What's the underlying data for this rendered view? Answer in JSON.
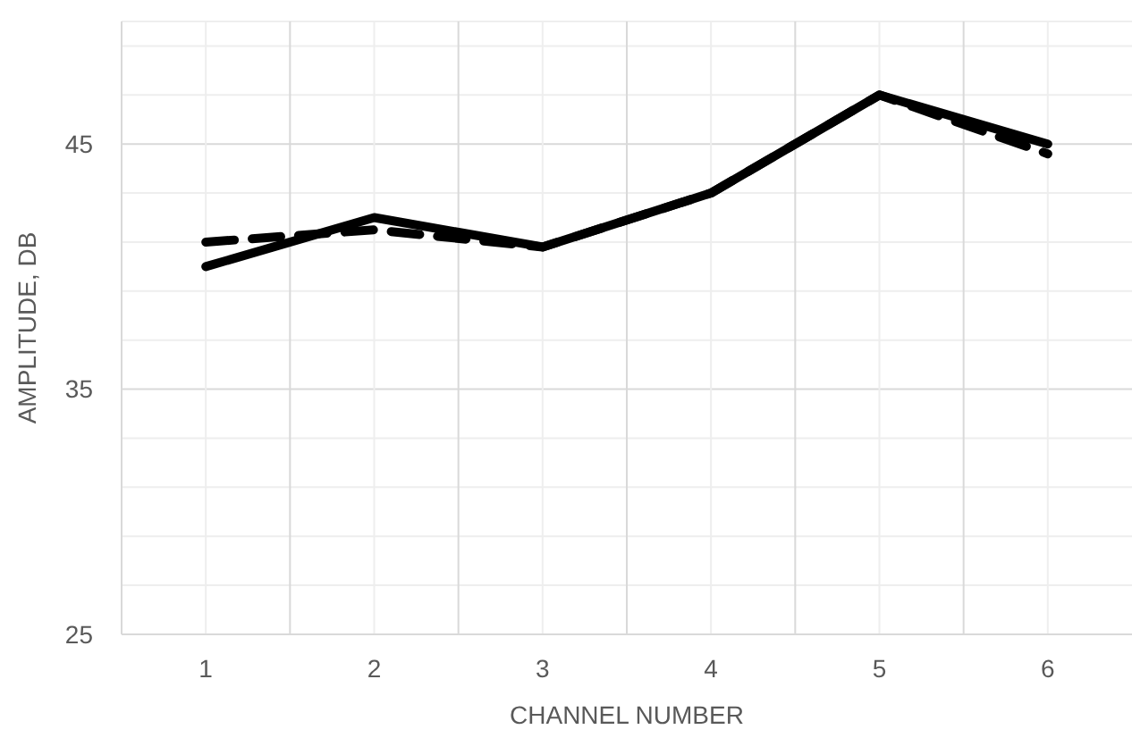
{
  "chart_data": {
    "type": "line",
    "xlabel": "CHANNEL NUMBER",
    "ylabel": "AMPLITUDE, DB",
    "categories": [
      "1",
      "2",
      "3",
      "4",
      "5",
      "6"
    ],
    "series": [
      {
        "color": "#000000",
        "values": [
          41,
          41.5,
          40.8,
          43,
          47,
          44.6
        ],
        "line_style": "dashed"
      },
      {
        "color": "#000000",
        "values": [
          40,
          42,
          40.8,
          43,
          47,
          45
        ],
        "line_style": "solid"
      }
    ],
    "ylim": [
      25,
      50
    ],
    "yticks": [
      25,
      {
        "value": 27,
        "label": null
      },
      {
        "value": 29,
        "label": null
      },
      {
        "value": 31,
        "label": null
      },
      {
        "value": 33,
        "label": null
      },
      35,
      {
        "value": 37,
        "label": null
      },
      {
        "value": 39,
        "label": null
      },
      {
        "value": 41,
        "label": null
      },
      {
        "value": 43,
        "label": null
      },
      45,
      {
        "value": 47,
        "label": null
      },
      {
        "value": 49,
        "label": null
      }
    ],
    "grid": true
  }
}
